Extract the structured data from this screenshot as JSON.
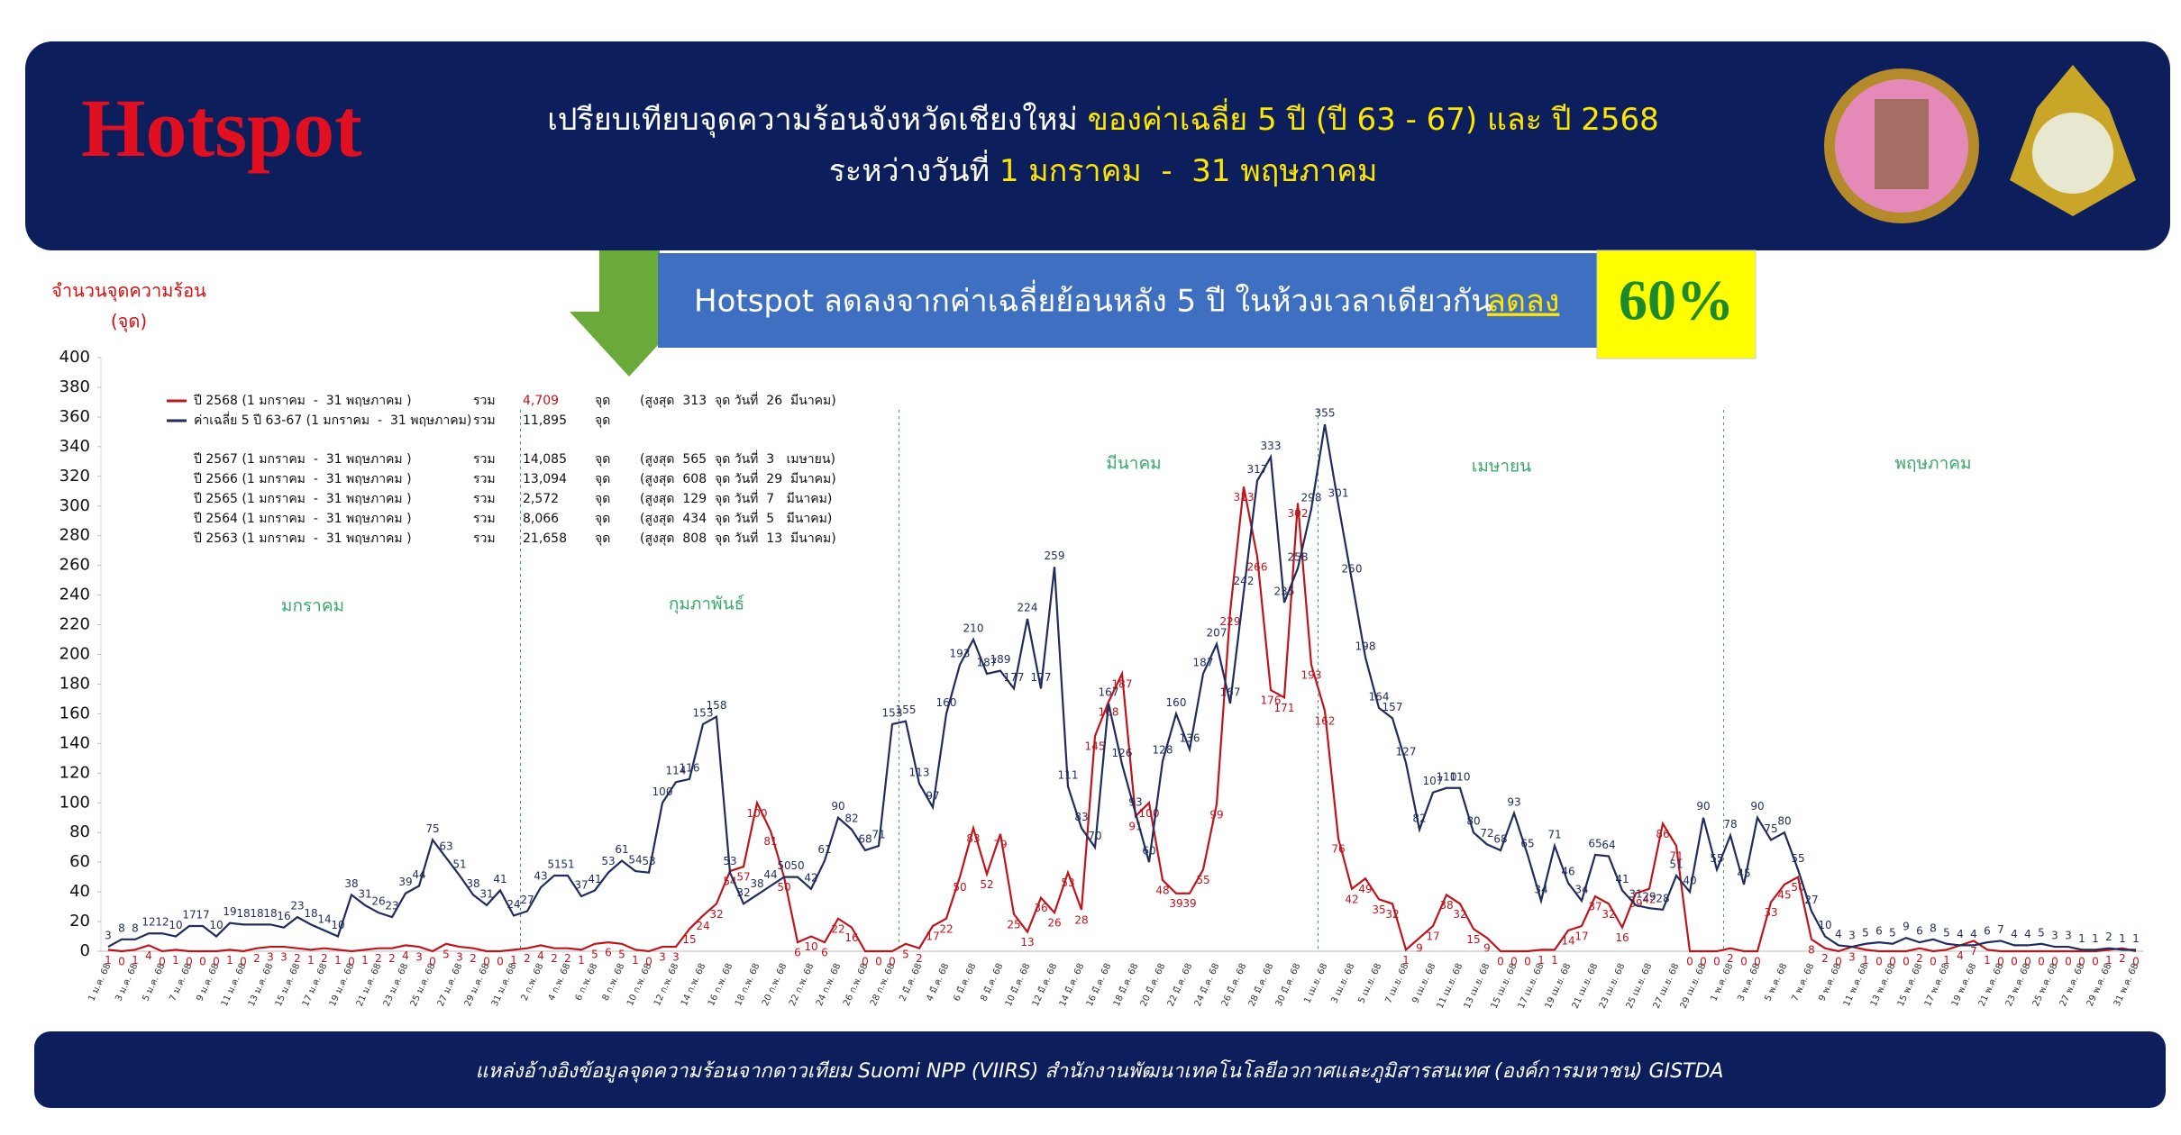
{
  "header": {
    "title": "Hotspot",
    "line1_white": "เปรียบเทียบจุดความร้อนจังหวัดเชียงใหม่",
    "line1_yellow": "ของค่าเฉลี่ย 5 ปี (ปี 63 - 67) และ ปี 2568",
    "line2_white": "ระหว่างวันที่",
    "line2_yellow": "1 มกราคม  -  31 พฤษภาคม"
  },
  "banner": {
    "text": "Hotspot ลดลงจากค่าเฉลี่ยย้อนหลัง 5 ปี ในห้วงเวลาเดียวกัน",
    "emphasis": "ลดลง",
    "percent": "60%"
  },
  "footer": {
    "source": "แหล่งอ้างอิงข้อมูลจุดความร้อนจากดาวเทียม Suomi NPP (VIIRS) สำนักงานพัฒนาเทคโนโลยีอวกาศและภูมิสารสนเทศ (องค์การมหาชน) GISTDA"
  },
  "chart_data": {
    "type": "line",
    "y_label": "จำนวนจุดความร้อน",
    "y_unit": "(จุด)",
    "ylim": [
      0,
      400
    ],
    "yticks": [
      0,
      20,
      40,
      60,
      80,
      100,
      120,
      140,
      160,
      180,
      200,
      220,
      240,
      260,
      280,
      300,
      320,
      340,
      360,
      380,
      400
    ],
    "sum_word": "รวม",
    "unit_word": "จุด",
    "months": [
      "มกราคม",
      "กุมภาพันธ์",
      "มีนาคม",
      "เมษายน",
      "พฤษภาคม"
    ],
    "categories": [
      "1 ม.ค. 68",
      null,
      "3 ม.ค. 68",
      null,
      "5 ม.ค. 68",
      null,
      "7 ม.ค. 68",
      null,
      "9 ม.ค. 68",
      null,
      "11 ม.ค. 68",
      null,
      "13 ม.ค. 68",
      null,
      "15 ม.ค. 68",
      null,
      "17 ม.ค. 68",
      null,
      "19 ม.ค. 68",
      null,
      "21 ม.ค. 68",
      null,
      "23 ม.ค. 68",
      null,
      "25 ม.ค. 68",
      null,
      "27 ม.ค. 68",
      null,
      "29 ม.ค. 68",
      null,
      "31 ม.ค. 68",
      null,
      "2 ก.พ. 68",
      null,
      "4 ก.พ. 68",
      null,
      "6 ก.พ. 68",
      null,
      "8 ก.พ. 68",
      null,
      "10 ก.พ. 68",
      null,
      "12 ก.พ. 68",
      null,
      "14 ก.พ. 68",
      null,
      "16 ก.พ. 68",
      null,
      "18 ก.พ. 68",
      null,
      "20 ก.พ. 68",
      null,
      "22 ก.พ. 68",
      null,
      "24 ก.พ. 68",
      null,
      "26 ก.พ. 68",
      null,
      "28 ก.พ. 68",
      null,
      "2 มี.ค. 68",
      null,
      "4 มี.ค. 68",
      null,
      "6 มี.ค. 68",
      null,
      "8 มี.ค. 68",
      null,
      "10 มี.ค. 68",
      null,
      "12 มี.ค. 68",
      null,
      "14 มี.ค. 68",
      null,
      "16 มี.ค. 68",
      null,
      "18 มี.ค. 68",
      null,
      "20 มี.ค. 68",
      null,
      "22 มี.ค. 68",
      null,
      "24 มี.ค. 68",
      null,
      "26 มี.ค. 68",
      null,
      "28 มี.ค. 68",
      null,
      "30 มี.ค. 68",
      null,
      "1 เม.ย. 68",
      null,
      "3 เม.ย. 68",
      null,
      "5 เม.ย. 68",
      null,
      "7 เม.ย. 68",
      null,
      "9 เม.ย. 68",
      null,
      "11 เม.ย. 68",
      null,
      "13 เม.ย. 68",
      null,
      "15 เม.ย. 68",
      null,
      "17 เม.ย. 68",
      null,
      "19 เม.ย. 68",
      null,
      "21 เม.ย. 68",
      null,
      "23 เม.ย. 68",
      null,
      "25 เม.ย. 68",
      null,
      "27 เม.ย. 68",
      null,
      "29 เม.ย. 68",
      null,
      "1 พ.ค. 68",
      null,
      "3 พ.ค. 68",
      null,
      "5 พ.ค. 68",
      null,
      "7 พ.ค. 68",
      null,
      "9 พ.ค. 68",
      null,
      "11 พ.ค. 68",
      null,
      "13 พ.ค. 68",
      null,
      "15 พ.ค. 68",
      null,
      "17 พ.ค. 68",
      null,
      "19 พ.ค. 68",
      null,
      "21 พ.ค. 68",
      null,
      "23 พ.ค. 68",
      null,
      "25 พ.ค. 68",
      null,
      "27 พ.ค. 68",
      null,
      "29 พ.ค. 68",
      null,
      "31 พ.ค. 68"
    ],
    "series": [
      {
        "name": "ปี 2568 (1 มกราคม  -  31 พฤษภาคม )",
        "color": "#c0141b",
        "total": "4,709",
        "peak": "(สูงสุด  313  จุด วันที่  26  มีนาคม)",
        "values": [
          1,
          0,
          1,
          4,
          0,
          1,
          0,
          0,
          0,
          1,
          0,
          2,
          3,
          3,
          2,
          1,
          2,
          1,
          0,
          1,
          2,
          2,
          4,
          3,
          0,
          5,
          3,
          2,
          0,
          0,
          1,
          2,
          4,
          2,
          2,
          1,
          5,
          6,
          5,
          1,
          0,
          3,
          3,
          15,
          24,
          32,
          54,
          57,
          100,
          81,
          50,
          6,
          10,
          6,
          22,
          16,
          0,
          0,
          0,
          5,
          2,
          17,
          22,
          50,
          83,
          52,
          79,
          25,
          13,
          36,
          26,
          53,
          28,
          145,
          168,
          187,
          91,
          100,
          48,
          39,
          39,
          55,
          99,
          229,
          313,
          266,
          176,
          171,
          302,
          193,
          162,
          76,
          42,
          49,
          35,
          32,
          1,
          9,
          17,
          38,
          32,
          15,
          9,
          0,
          0,
          0,
          1,
          1,
          14,
          17,
          37,
          32,
          16,
          39,
          42,
          86,
          71,
          0,
          0,
          0,
          2,
          0,
          0,
          33,
          45,
          50,
          8,
          2,
          0,
          3,
          1,
          0,
          0,
          0,
          2,
          0,
          1,
          4,
          7,
          1,
          0,
          0,
          0,
          0,
          0,
          0,
          0,
          0,
          1,
          2,
          0
        ]
      },
      {
        "name": "ค่าเฉลี่ย 5 ปี 63-67 (1 มกราคม  -  31 พฤษภาคม)",
        "color": "#1f2d5e",
        "total": "11,895",
        "values": [
          3,
          8,
          8,
          12,
          12,
          10,
          17,
          17,
          10,
          19,
          18,
          18,
          18,
          16,
          23,
          18,
          14,
          10,
          38,
          31,
          26,
          23,
          39,
          44,
          75,
          63,
          51,
          38,
          31,
          41,
          24,
          27,
          43,
          51,
          51,
          37,
          41,
          53,
          61,
          54,
          53,
          100,
          114,
          116,
          153,
          158,
          53,
          32,
          38,
          44,
          50,
          50,
          42,
          61,
          90,
          82,
          68,
          71,
          153,
          155,
          113,
          97,
          160,
          193,
          210,
          187,
          189,
          177,
          224,
          177,
          259,
          111,
          83,
          70,
          167,
          126,
          93,
          60,
          128,
          160,
          136,
          187,
          207,
          167,
          242,
          317,
          333,
          235,
          258,
          298,
          355,
          301,
          250,
          198,
          164,
          157,
          127,
          82,
          107,
          110,
          110,
          80,
          72,
          68,
          93,
          65,
          34,
          71,
          46,
          34,
          65,
          64,
          41,
          31,
          29,
          28,
          51,
          40,
          90,
          55,
          78,
          45,
          90,
          75,
          80,
          55,
          27,
          10,
          4,
          3,
          5,
          6,
          5,
          9,
          6,
          8,
          5,
          4,
          4,
          6,
          7,
          4,
          4,
          5,
          3,
          3,
          1,
          1,
          2,
          1,
          1
        ]
      }
    ],
    "other_years": [
      {
        "name": "ปี 2567 (1 มกราคม  -  31 พฤษภาคม )",
        "total": "14,085",
        "peak": "(สูงสุด  565  จุด วันที่  3   เมษายน)"
      },
      {
        "name": "ปี 2566 (1 มกราคม  -  31 พฤษภาคม )",
        "total": "13,094",
        "peak": "(สูงสุด  608  จุด วันที่  29  มีนาคม)"
      },
      {
        "name": "ปี 2565 (1 มกราคม  -  31 พฤษภาคม )",
        "total": "2,572",
        "peak": "(สูงสุด  129  จุด วันที่  7   มีนาคม)"
      },
      {
        "name": "ปี 2564 (1 มกราคม  -  31 พฤษภาคม )",
        "total": "8,066",
        "peak": "(สูงสุด  434  จุด วันที่  5   มีนาคม)"
      },
      {
        "name": "ปี 2563 (1 มกราคม  -  31 พฤษภาคม )",
        "total": "21,658",
        "peak": "(สูงสุด  808  จุด วันที่  13  มีนาคม)"
      }
    ]
  }
}
